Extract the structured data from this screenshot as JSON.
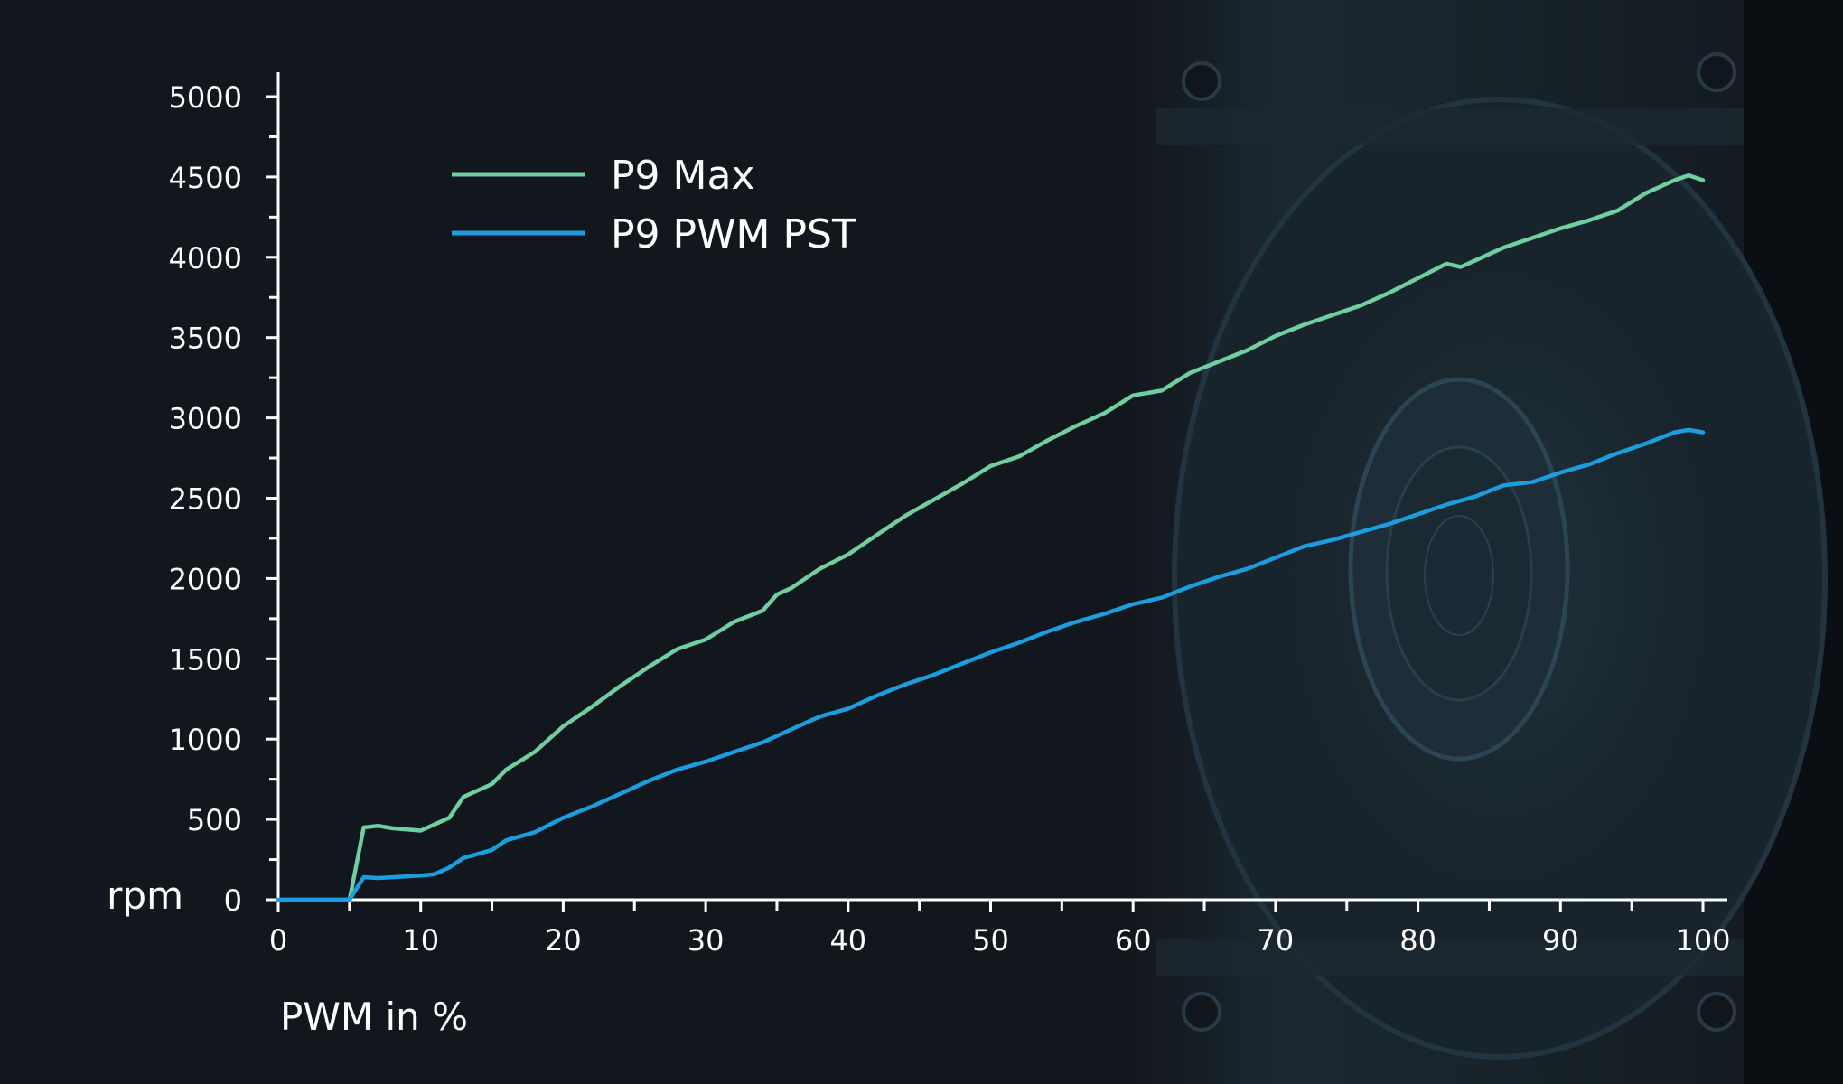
{
  "colors": {
    "background": "#12171d",
    "axis": "#ffffff",
    "p9_max": "#6fcfa0",
    "p9_pwm_pst": "#1a9ee0"
  },
  "chart_data": {
    "type": "line",
    "title": "",
    "xlabel": "PWM in %",
    "ylabel": "rpm",
    "xlim": [
      0,
      100
    ],
    "ylim": [
      0,
      5000
    ],
    "x_ticks": [
      0,
      10,
      20,
      30,
      40,
      50,
      60,
      70,
      80,
      90,
      100
    ],
    "y_ticks": [
      0,
      500,
      1000,
      1500,
      2000,
      2500,
      3000,
      3500,
      4000,
      4500,
      5000
    ],
    "grid": false,
    "legend_position": "top-left",
    "series": [
      {
        "name": "P9 Max",
        "color": "#6fcfa0",
        "x": [
          0,
          5,
          6,
          7,
          8,
          10,
          12,
          13,
          15,
          16,
          18,
          20,
          22,
          24,
          26,
          28,
          30,
          32,
          34,
          35,
          36,
          38,
          40,
          42,
          44,
          46,
          48,
          50,
          52,
          54,
          56,
          58,
          60,
          62,
          64,
          66,
          68,
          70,
          72,
          74,
          76,
          78,
          80,
          82,
          83,
          84,
          86,
          88,
          90,
          92,
          94,
          96,
          98,
          99,
          100
        ],
        "y": [
          0,
          0,
          450,
          460,
          445,
          430,
          510,
          640,
          720,
          810,
          920,
          1080,
          1200,
          1330,
          1450,
          1560,
          1620,
          1730,
          1800,
          1900,
          1940,
          2060,
          2150,
          2270,
          2390,
          2490,
          2590,
          2700,
          2760,
          2860,
          2950,
          3030,
          3140,
          3170,
          3280,
          3350,
          3420,
          3510,
          3580,
          3640,
          3700,
          3780,
          3870,
          3960,
          3940,
          3980,
          4060,
          4120,
          4180,
          4230,
          4290,
          4400,
          4480,
          4510,
          4480
        ]
      },
      {
        "name": "P9 PWM PST",
        "color": "#1a9ee0",
        "x": [
          0,
          5,
          6,
          7,
          8,
          10,
          11,
          12,
          13,
          15,
          16,
          18,
          20,
          22,
          24,
          26,
          28,
          30,
          32,
          34,
          36,
          38,
          40,
          42,
          44,
          46,
          48,
          50,
          52,
          54,
          56,
          58,
          60,
          62,
          64,
          66,
          68,
          70,
          72,
          74,
          76,
          78,
          80,
          82,
          84,
          86,
          88,
          90,
          92,
          94,
          96,
          98,
          99,
          100
        ],
        "y": [
          0,
          0,
          140,
          135,
          140,
          150,
          160,
          200,
          260,
          310,
          370,
          420,
          510,
          580,
          660,
          740,
          810,
          860,
          920,
          980,
          1060,
          1140,
          1190,
          1270,
          1340,
          1400,
          1470,
          1540,
          1600,
          1670,
          1730,
          1780,
          1840,
          1880,
          1950,
          2010,
          2060,
          2130,
          2200,
          2240,
          2290,
          2340,
          2400,
          2460,
          2510,
          2580,
          2600,
          2660,
          2710,
          2780,
          2840,
          2910,
          2925,
          2910
        ]
      }
    ]
  }
}
